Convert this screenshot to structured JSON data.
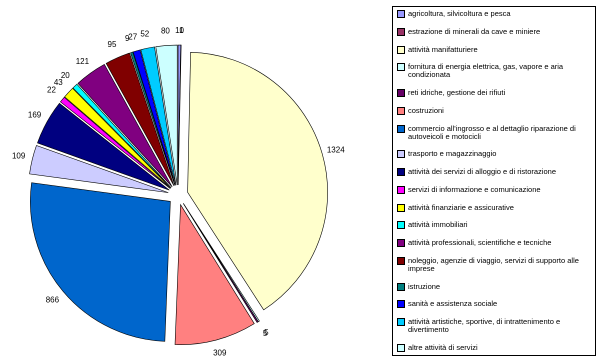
{
  "chart_data": {
    "type": "pie",
    "categories": [
      "agricoltura, silvicoltura e pesca",
      "estrazione di minerali da cave e miniere",
      "attività manifatturiere",
      "fornitura di energia elettrica, gas, vapore e aria condizionata",
      "reti idriche, gestione dei rifiuti",
      "costruzioni",
      "commercio all'ingrosso e al dettaglio riparazione di autoveicoli e motocicli",
      "trasporto e magazzinaggio",
      "attività dei servizi di alloggio e di ristorazione",
      "servizi di informazione e comunicazione",
      "attività finanziarie e assicurative",
      "attività immobiliari",
      "attività professionali, scientifiche e tecniche",
      "noleggio, agenzie di viaggio, servizi di supporto alle imprese",
      "istruzione",
      "sanità e assistenza sociale",
      "attività artistiche, sportive, di intrattenimento e divertimento",
      "altre attività di servizi"
    ],
    "values": [
      10,
      1,
      1324,
      5,
      5,
      309,
      866,
      109,
      169,
      22,
      43,
      20,
      121,
      95,
      9,
      27,
      52,
      80
    ],
    "colors": [
      "#9999ff",
      "#993366",
      "#ffffcc",
      "#ccffff",
      "#660066",
      "#ff8080",
      "#0066cc",
      "#ccccff",
      "#000080",
      "#ff00ff",
      "#ffff00",
      "#00ffff",
      "#800080",
      "#800000",
      "#008080",
      "#0000ff",
      "#00ccff",
      "#ccffff"
    ]
  }
}
